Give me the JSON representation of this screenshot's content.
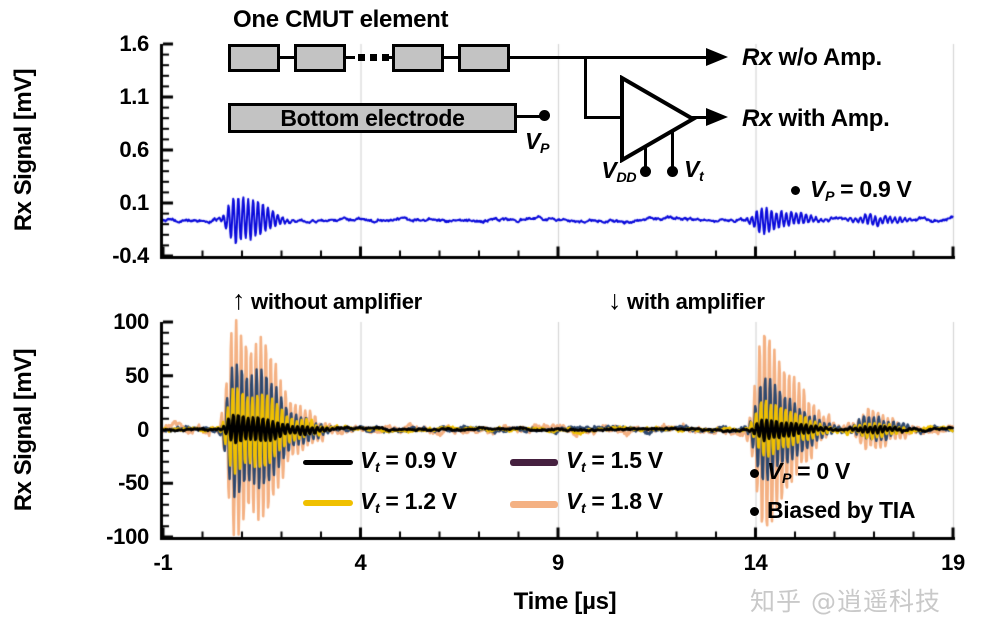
{
  "watermark": "知乎 @逍遥科技",
  "between_plots": {
    "up_arrow": "↑",
    "up_text": "without amplifier",
    "down_arrow": "↓",
    "down_text": "with amplifier"
  },
  "diagram": {
    "title": "One CMUT element",
    "bottom_electrode": "Bottom electrode",
    "tia": "TIA",
    "rx_wo": {
      "rx": "Rx",
      "rest": " w/o Amp."
    },
    "rx_with": {
      "rx": "Rx",
      "rest": " with Amp."
    },
    "vp": {
      "v": "V",
      "sub": "P"
    },
    "vdd": {
      "v": "V",
      "sub": "DD"
    },
    "vt": {
      "v": "V",
      "sub": "t"
    }
  },
  "chart_data": [
    {
      "id": "rx-signal-without-amplifier",
      "type": "line",
      "ylabel": "Rx Signal [mV]",
      "ylim": [
        -0.4,
        1.6
      ],
      "yticks": [
        "1.6",
        "1.1",
        "0.6",
        "0.1",
        "-0.4"
      ],
      "ytick_values": [
        1.6,
        1.1,
        0.6,
        0.1,
        -0.4
      ],
      "xlim": [
        -1,
        19
      ],
      "xtick_values": [
        -1,
        4,
        9,
        14,
        19
      ],
      "grid_x": [
        4,
        9,
        14,
        19
      ],
      "minor_x_step": 1,
      "minor_y_step": 0.1,
      "show_x_labels": false,
      "grid_color": "#D6D6D6",
      "series": [
        {
          "name": "Rx signal without amplifier",
          "color": "#0A0ADB",
          "baseline": -0.06,
          "noise": 0.016,
          "period_us": 0.125,
          "bursts": [
            {
              "c": 0.8,
              "w": 0.3,
              "a": 0.21
            },
            {
              "c": 1.35,
              "w": 0.4,
              "a": 0.14
            },
            {
              "c": 14.15,
              "w": 0.32,
              "a": 0.12
            },
            {
              "c": 14.9,
              "w": 0.55,
              "a": 0.05
            },
            {
              "c": 16.9,
              "w": 0.6,
              "a": 0.045
            }
          ]
        }
      ],
      "annotation": {
        "v": "V",
        "sub": "P",
        "rest": " = 0.9 V"
      }
    },
    {
      "id": "rx-signal-with-amplifier-vt-sweep",
      "type": "line",
      "ylabel": "Rx Signal [mV]",
      "xlabel": "Time [µs]",
      "ylim": [
        -100,
        100
      ],
      "yticks": [
        "100",
        "50",
        "0",
        "-50",
        "-100"
      ],
      "ytick_values": [
        100,
        50,
        0,
        -50,
        -100
      ],
      "xlim": [
        -1,
        19
      ],
      "xticks": [
        "-1",
        "4",
        "9",
        "14",
        "19"
      ],
      "xtick_values": [
        -1,
        4,
        9,
        14,
        19
      ],
      "grid_x": [
        4,
        9,
        14,
        19
      ],
      "minor_x_step": 1,
      "minor_y_step": 10,
      "show_x_labels": true,
      "grid_color": "#D6D6D6",
      "series": [
        {
          "name": "Vt = 0.9 V",
          "color": "#000000",
          "baseline": 0,
          "noise": 1.1,
          "period_us": 0.125,
          "bursts": [
            {
              "c": 0.8,
              "w": 0.3,
              "a": 13
            },
            {
              "c": 1.5,
              "w": 0.5,
              "a": 10
            },
            {
              "c": 2.6,
              "w": 0.4,
              "a": 3
            },
            {
              "c": 14.2,
              "w": 0.35,
              "a": 9
            },
            {
              "c": 14.9,
              "w": 0.55,
              "a": 5
            },
            {
              "c": 16.9,
              "w": 0.55,
              "a": 3
            }
          ]
        },
        {
          "name": "Vt = 1.2 V",
          "color": "#F0C000",
          "baseline": 0,
          "noise": 1.8,
          "period_us": 0.125,
          "bursts": [
            {
              "c": 0.8,
              "w": 0.3,
              "a": 40
            },
            {
              "c": 1.5,
              "w": 0.5,
              "a": 33
            },
            {
              "c": 2.6,
              "w": 0.4,
              "a": 6
            },
            {
              "c": 14.2,
              "w": 0.35,
              "a": 26
            },
            {
              "c": 14.9,
              "w": 0.55,
              "a": 13
            },
            {
              "c": 16.9,
              "w": 0.55,
              "a": 7
            }
          ]
        },
        {
          "name": "Vt = 1.5 V",
          "color": "#45203F",
          "plot_color": "#2E486E",
          "baseline": 0,
          "noise": 2.2,
          "period_us": 0.125,
          "bursts": [
            {
              "c": 0.8,
              "w": 0.3,
              "a": 62
            },
            {
              "c": 1.5,
              "w": 0.5,
              "a": 52
            },
            {
              "c": 2.6,
              "w": 0.4,
              "a": 8
            },
            {
              "c": 14.2,
              "w": 0.35,
              "a": 48
            },
            {
              "c": 14.9,
              "w": 0.55,
              "a": 22
            },
            {
              "c": 16.9,
              "w": 0.55,
              "a": 11
            }
          ]
        },
        {
          "name": "Vt = 1.8 V",
          "color": "#F4B183",
          "baseline": 0,
          "noise": 3.5,
          "period_us": 0.125,
          "bursts": [
            {
              "c": 0.8,
              "w": 0.3,
              "a": 100
            },
            {
              "c": 1.5,
              "w": 0.5,
              "a": 78
            },
            {
              "c": 2.6,
              "w": 0.4,
              "a": 12
            },
            {
              "c": 14.2,
              "w": 0.35,
              "a": 92
            },
            {
              "c": 14.9,
              "w": 0.55,
              "a": 40
            },
            {
              "c": 16.9,
              "w": 0.55,
              "a": 18
            }
          ]
        }
      ],
      "legend": [
        {
          "v": "V",
          "sub": "t",
          "rest": " = 0.9 V"
        },
        {
          "v": "V",
          "sub": "t",
          "rest": " = 1.2 V"
        },
        {
          "v": "V",
          "sub": "t",
          "rest": " = 1.5 V"
        },
        {
          "v": "V",
          "sub": "t",
          "rest": " = 1.8 V"
        }
      ],
      "annotations": [
        {
          "v": "V",
          "sub": "P",
          "rest": " = 0 V"
        },
        {
          "text": "Biased by TIA"
        }
      ]
    }
  ]
}
